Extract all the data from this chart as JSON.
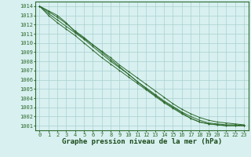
{
  "title": "Graphe pression niveau de la mer (hPa)",
  "xlabel_hours": [
    0,
    1,
    2,
    3,
    4,
    5,
    6,
    7,
    8,
    9,
    10,
    11,
    12,
    13,
    14,
    15,
    16,
    17,
    18,
    19,
    20,
    21,
    22,
    23
  ],
  "ylim": [
    1000.5,
    1014.5
  ],
  "xlim": [
    -0.5,
    23.5
  ],
  "yticks": [
    1001,
    1002,
    1003,
    1004,
    1005,
    1006,
    1007,
    1008,
    1009,
    1010,
    1011,
    1012,
    1013,
    1014
  ],
  "line1": [
    1014.0,
    1013.5,
    1013.0,
    1012.2,
    1011.2,
    1010.5,
    1009.8,
    1009.1,
    1008.4,
    1007.6,
    1006.9,
    1006.2,
    1005.5,
    1004.8,
    1004.1,
    1003.4,
    1002.8,
    1002.3,
    1001.9,
    1001.6,
    1001.4,
    1001.3,
    1001.2,
    1001.1
  ],
  "line2": [
    1014.0,
    1013.4,
    1012.8,
    1012.1,
    1011.3,
    1010.6,
    1009.8,
    1009.0,
    1008.2,
    1007.4,
    1006.6,
    1005.8,
    1005.1,
    1004.4,
    1003.7,
    1003.1,
    1002.5,
    1002.0,
    1001.6,
    1001.3,
    1001.2,
    1001.1,
    1001.1,
    1001.0
  ],
  "line3": [
    1014.0,
    1013.2,
    1012.5,
    1011.8,
    1011.1,
    1010.4,
    1009.6,
    1008.8,
    1008.0,
    1007.3,
    1006.6,
    1005.8,
    1005.0,
    1004.3,
    1003.6,
    1003.0,
    1002.4,
    1001.8,
    1001.4,
    1001.2,
    1001.1,
    1001.0,
    1001.0,
    1001.0
  ],
  "line4": [
    1014.0,
    1013.0,
    1012.2,
    1011.5,
    1010.8,
    1010.0,
    1009.2,
    1008.4,
    1007.7,
    1007.0,
    1006.3,
    1005.6,
    1004.9,
    1004.2,
    1003.5,
    1002.9,
    1002.3,
    1001.8,
    1001.4,
    1001.2,
    1001.1,
    1001.0,
    1001.0,
    1001.0
  ],
  "line_color": "#2d6a2d",
  "marker": "+",
  "bg_color": "#d8f0f0",
  "grid_color": "#aacfcf",
  "title_color": "#1a4a1a",
  "title_fontsize": 6.5,
  "tick_fontsize": 5.0,
  "axis_color": "#2d6a2d"
}
